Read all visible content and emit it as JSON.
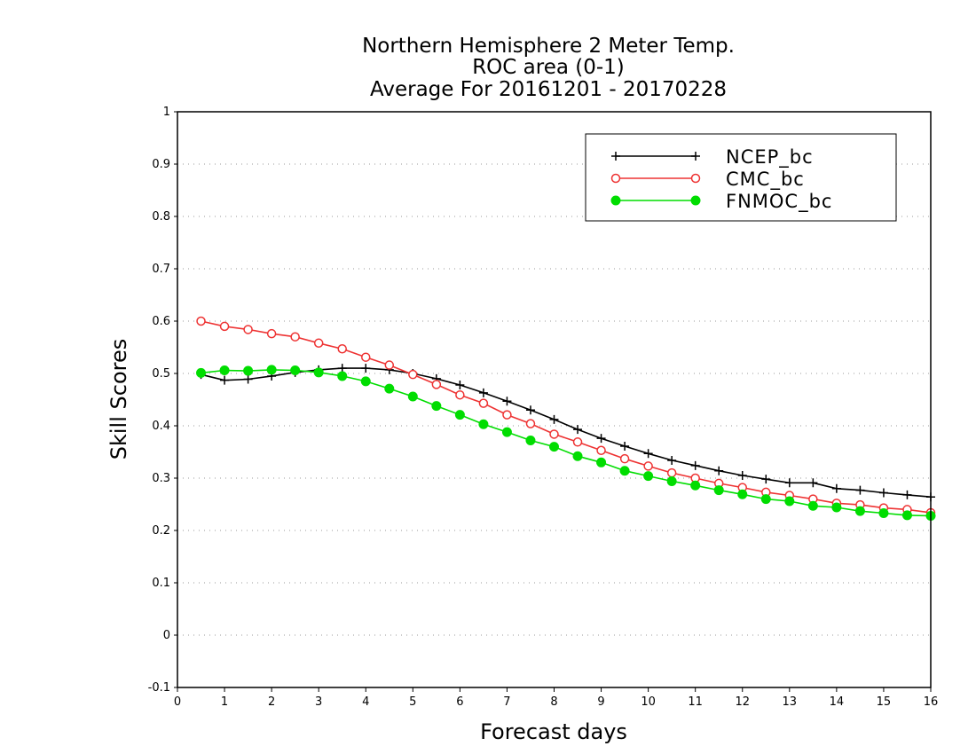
{
  "chart_data": {
    "type": "line",
    "title_lines": [
      "Northern Hemisphere 2 Meter Temp.",
      "ROC area (0-1)",
      "Average For 20161201 - 20170228"
    ],
    "xlabel": "Forecast days",
    "ylabel": "Skill Scores",
    "xlim": [
      0,
      16
    ],
    "ylim": [
      -0.1,
      1
    ],
    "x_ticks": [
      0,
      1,
      2,
      3,
      4,
      5,
      6,
      7,
      8,
      9,
      10,
      11,
      12,
      13,
      14,
      15,
      16
    ],
    "x_tick_labels": [
      "0",
      "1",
      "2",
      "3",
      "4",
      "5",
      "6",
      "7",
      "8",
      "9",
      "10",
      "11",
      "12",
      "13",
      "14",
      "15",
      "16"
    ],
    "y_ticks": [
      -0.1,
      0,
      0.1,
      0.2,
      0.3,
      0.4,
      0.5,
      0.6,
      0.7,
      0.8,
      0.9,
      1
    ],
    "y_tick_labels": [
      "-0.1",
      "0",
      "0.1",
      "0.2",
      "0.3",
      "0.4",
      "0.5",
      "0.6",
      "0.7",
      "0.8",
      "0.9",
      "1"
    ],
    "grid": "horizontal dotted",
    "legend_position": "top-right",
    "x": [
      0.5,
      1,
      1.5,
      2,
      2.5,
      3,
      3.5,
      4,
      4.5,
      5,
      5.5,
      6,
      6.5,
      7,
      7.5,
      8,
      8.5,
      9,
      9.5,
      10,
      10.5,
      11,
      11.5,
      12,
      12.5,
      13,
      13.5,
      14,
      14.5,
      15,
      15.5,
      16
    ],
    "series": [
      {
        "name": "NCEP_bc",
        "color": "#000000",
        "marker": "plus",
        "values": [
          0.498,
          0.487,
          0.489,
          0.495,
          0.502,
          0.507,
          0.51,
          0.51,
          0.507,
          0.5,
          0.49,
          0.478,
          0.463,
          0.447,
          0.43,
          0.412,
          0.393,
          0.376,
          0.361,
          0.347,
          0.334,
          0.324,
          0.314,
          0.305,
          0.298,
          0.291,
          0.291,
          0.28,
          0.277,
          0.272,
          0.268,
          0.264
        ]
      },
      {
        "name": "CMC_bc",
        "color": "#ee3333",
        "marker": "open-circle",
        "values": [
          0.6,
          0.59,
          0.584,
          0.576,
          0.57,
          0.558,
          0.547,
          0.531,
          0.516,
          0.498,
          0.479,
          0.459,
          0.443,
          0.421,
          0.404,
          0.384,
          0.369,
          0.353,
          0.337,
          0.323,
          0.31,
          0.3,
          0.29,
          0.282,
          0.273,
          0.267,
          0.26,
          0.252,
          0.249,
          0.243,
          0.24,
          0.234
        ]
      },
      {
        "name": "FNMOC_bc",
        "color": "#00dd00",
        "marker": "filled-circle",
        "values": [
          0.501,
          0.506,
          0.505,
          0.507,
          0.506,
          0.502,
          0.495,
          0.485,
          0.471,
          0.456,
          0.438,
          0.421,
          0.403,
          0.388,
          0.372,
          0.36,
          0.342,
          0.33,
          0.314,
          0.304,
          0.294,
          0.286,
          0.277,
          0.269,
          0.26,
          0.256,
          0.247,
          0.244,
          0.237,
          0.233,
          0.229,
          0.228
        ]
      }
    ]
  }
}
